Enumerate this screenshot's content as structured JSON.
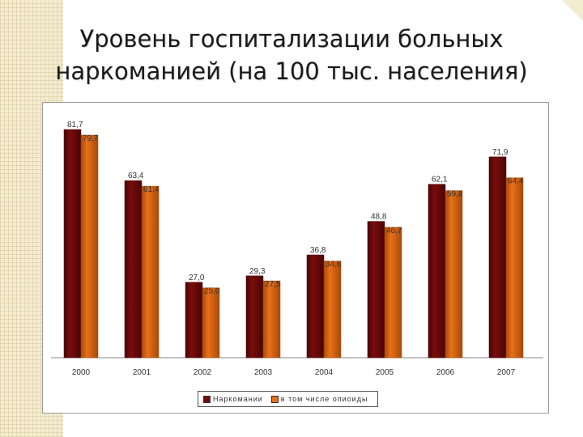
{
  "slide": {
    "title_line1": "Уровень госпитализации больных",
    "title_line2": "наркоманией (на 100 тыс. населения)"
  },
  "colors": {
    "series1": "#7a0c0c",
    "series1_dark": "#4a0505",
    "series2": "#e8701a",
    "series2_dark": "#a84a08",
    "accent_stripe": "#f3ecd0"
  },
  "chart_data": {
    "type": "bar",
    "title": "Уровень госпитализации больных наркоманией (на 100 тыс. населения)",
    "categories": [
      "2000",
      "2001",
      "2002",
      "2003",
      "2004",
      "2005",
      "2006",
      "2007"
    ],
    "series": [
      {
        "name": "Наркомании",
        "values": [
          81.7,
          63.4,
          27.0,
          29.3,
          36.8,
          48.8,
          62.1,
          71.9
        ],
        "labels": [
          "81,7",
          "63,4",
          "27,0",
          "29,3",
          "36,8",
          "48,8",
          "62,1",
          "71,9"
        ]
      },
      {
        "name": "в том числе опиоиды",
        "values": [
          79.7,
          61.4,
          25.0,
          27.5,
          34.6,
          46.7,
          59.8,
          64.4
        ],
        "labels": [
          "79,7",
          "61,4",
          "25,0",
          "27,5",
          "34,6",
          "46,7",
          "59,8",
          "64,4"
        ]
      }
    ],
    "ylim": [
      0,
      82
    ],
    "grid": false,
    "legend": "bottom"
  }
}
